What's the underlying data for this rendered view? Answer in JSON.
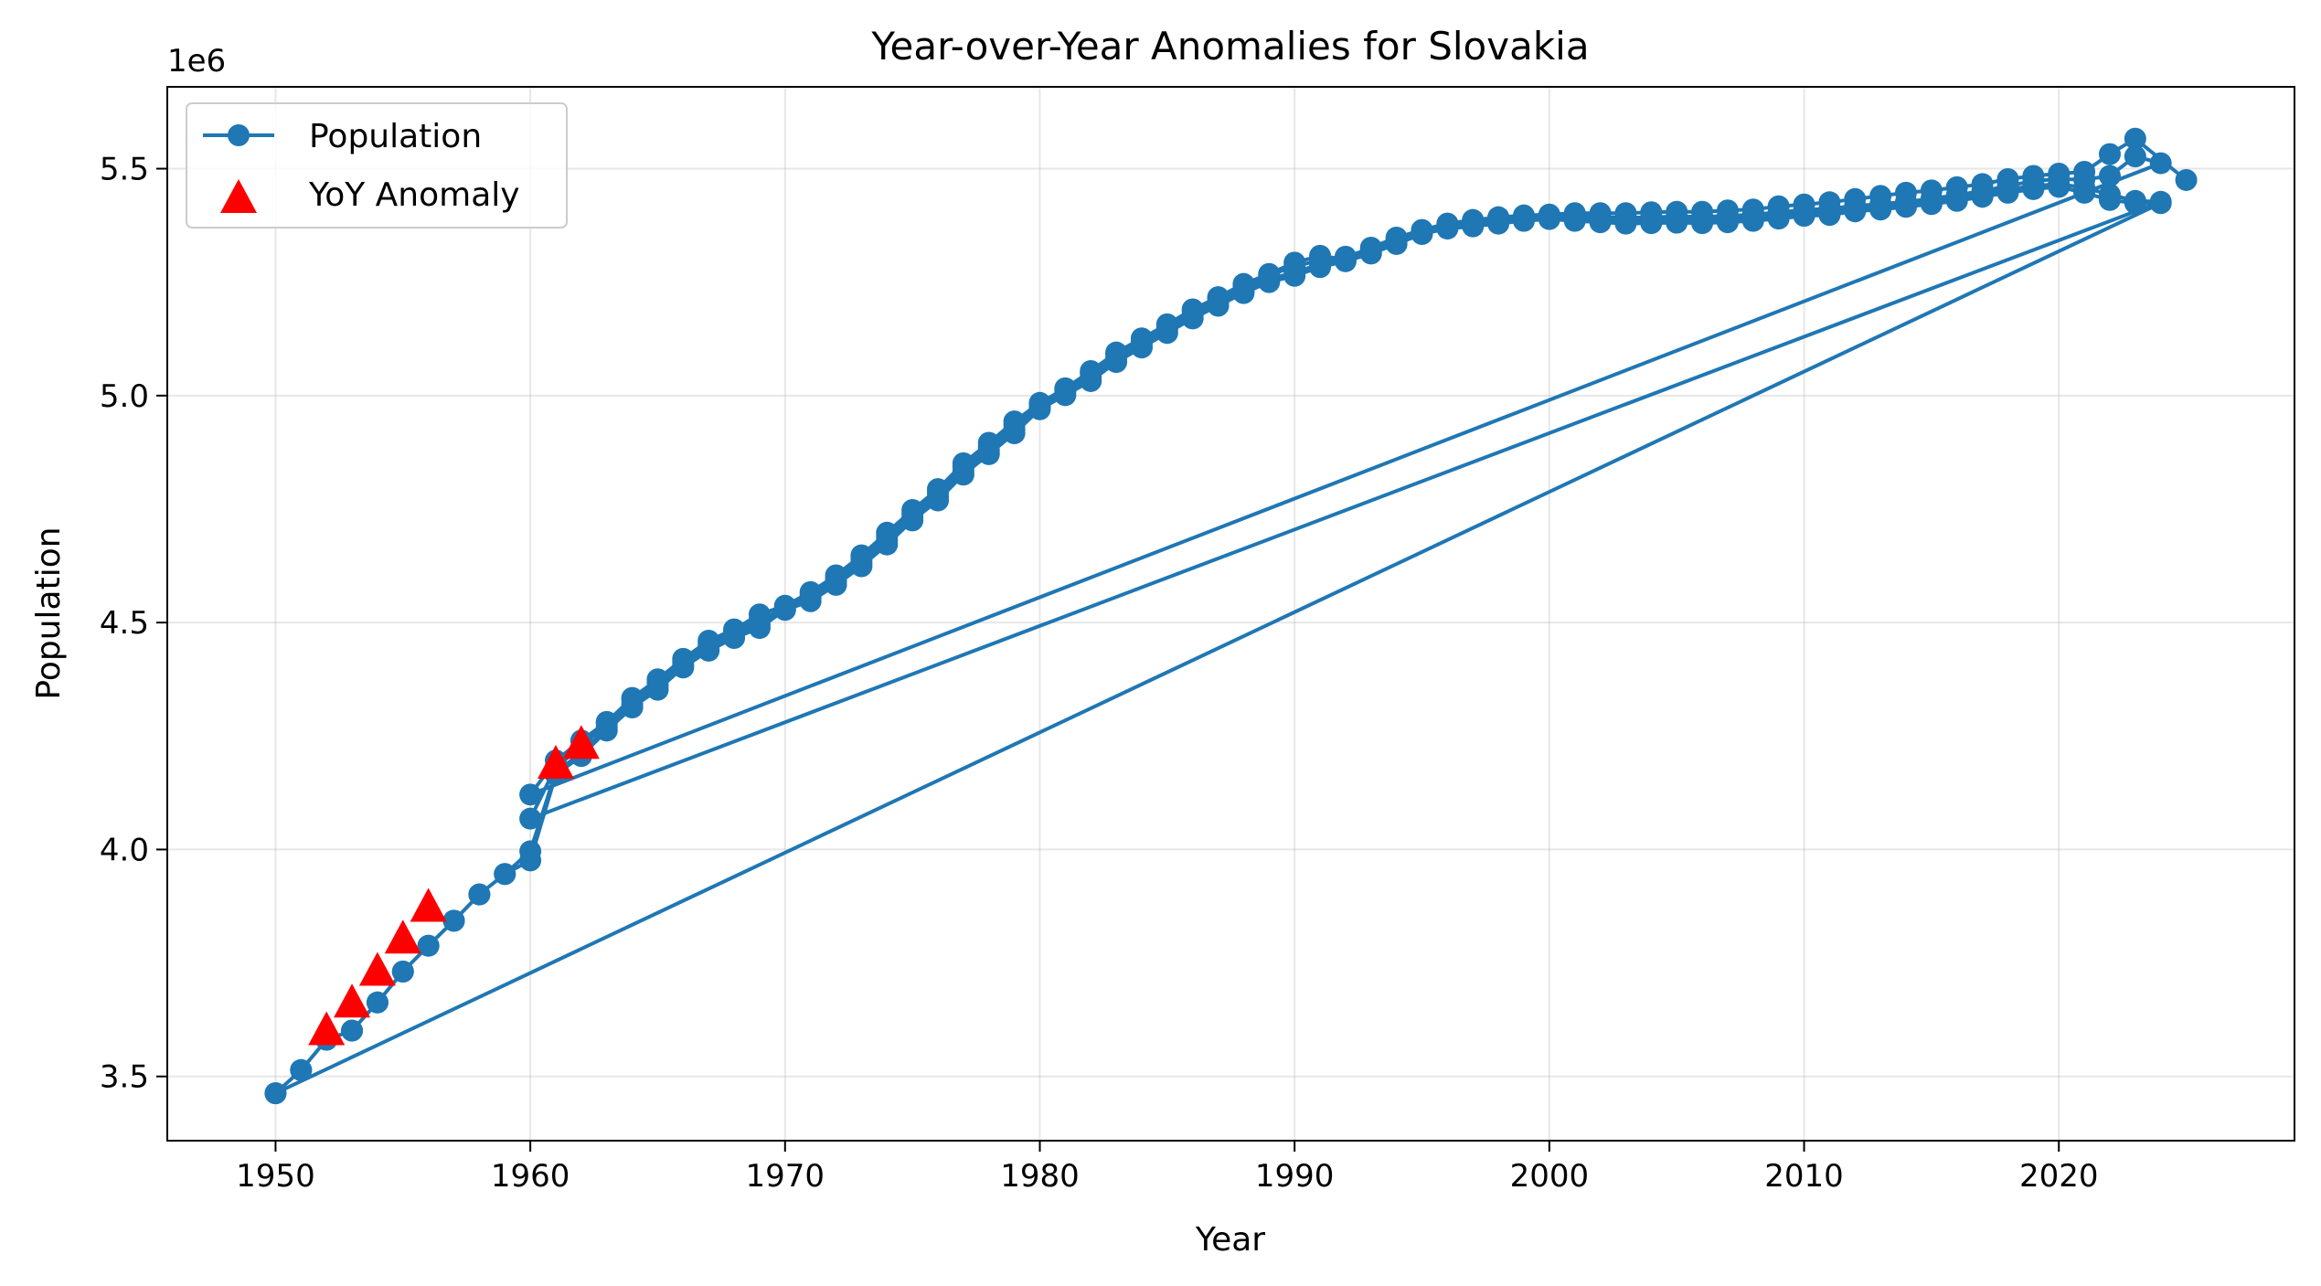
{
  "chart_data": {
    "type": "line",
    "title": "Year-over-Year Anomalies for Slovakia",
    "xlabel": "Year",
    "ylabel": "Population",
    "y_offset_label": "1e6",
    "xlim": [
      1945.75,
      2029.25
    ],
    "ylim": [
      3.3585,
      5.6803
    ],
    "x_ticks": [
      1950,
      1960,
      1970,
      1980,
      1990,
      2000,
      2010,
      2020
    ],
    "x_tick_labels": [
      "1950",
      "1960",
      "1970",
      "1980",
      "1990",
      "2000",
      "2010",
      "2020"
    ],
    "y_ticks": [
      3.5,
      4.0,
      4.5,
      5.0,
      5.5
    ],
    "y_tick_labels": [
      "3.5",
      "4.0",
      "4.5",
      "5.0",
      "5.5"
    ],
    "y_scale": 1000000,
    "grid": true,
    "legend_position": "upper-left",
    "legend": [
      "Population",
      "YoY Anomaly"
    ],
    "colors": {
      "line": "#1f77b4",
      "anomaly": "#ff0000"
    },
    "series": [
      {
        "name": "Population",
        "x": [
          1950,
          1951,
          1952,
          1953,
          1954,
          1955,
          1956,
          1957,
          1958,
          1959,
          1960,
          1961,
          1962,
          1963,
          1964,
          1965,
          1966,
          1967,
          1968,
          1969,
          1970,
          1971,
          1972,
          1973,
          1974,
          1975,
          1976,
          1977,
          1978,
          1979,
          1980,
          1981,
          1982,
          1983,
          1984,
          1985,
          1986,
          1987,
          1988,
          1989,
          1990,
          1991,
          1992,
          1993,
          1994,
          1995,
          1996,
          1997,
          1998,
          1999,
          2000,
          2001,
          2002,
          2003,
          2004,
          2005,
          2006,
          2007,
          2008,
          2009,
          2010,
          2011,
          2012,
          2013,
          2014,
          2015,
          2016,
          2017,
          2018,
          2019,
          2020,
          2021,
          2022,
          2023,
          2024,
          1950,
          1951,
          1952,
          1953,
          1954,
          1955,
          1956,
          1957,
          1958,
          1959,
          1960,
          1961,
          1962,
          1963,
          1964,
          1965,
          1966,
          1967,
          1968,
          1969,
          1970,
          1971,
          1972,
          1973,
          1974,
          1975,
          1976,
          1977,
          1978,
          1979,
          1980,
          1981,
          1982,
          1983,
          1984,
          1985,
          1986,
          1987,
          1988,
          1989,
          1990,
          1991,
          1992,
          1993,
          1994,
          1995,
          1996,
          1997,
          1998,
          1999,
          2000,
          2001,
          2002,
          2003,
          2004,
          2005,
          2006,
          2007,
          2008,
          2009,
          2010,
          2011,
          2012,
          2013,
          2014,
          2015,
          2016,
          2017,
          2018,
          2019,
          2020,
          2021,
          2022,
          2023,
          2024,
          1960,
          1961,
          1962,
          1963,
          1964,
          1965,
          1966,
          1967,
          1968,
          1969,
          1970,
          1971,
          1972,
          1973,
          1974,
          1975,
          1976,
          1977,
          1978,
          1979,
          1980,
          1981,
          1982,
          1983,
          1984,
          1985,
          1986,
          1987,
          1988,
          1989,
          1990,
          1991,
          1992,
          1993,
          1994,
          1995,
          1996,
          1997,
          1998,
          1999,
          2000,
          2001,
          2002,
          2003,
          2004,
          2005,
          2006,
          2007,
          2008,
          2009,
          2010,
          2011,
          2012,
          2013,
          2014,
          2015,
          2016,
          2017,
          2018,
          2019,
          2020,
          2021,
          2022,
          2023,
          2024,
          1960,
          1961,
          1962,
          1963,
          1964,
          1965,
          1966,
          1967,
          1968,
          1969,
          1970,
          1971,
          1972,
          1973,
          1974,
          1975,
          1976,
          1977,
          1978,
          1979,
          1980,
          1981,
          1982,
          1983,
          1984,
          1985,
          1986,
          1987,
          1988,
          1989,
          1990,
          1991,
          1992,
          1993,
          1994,
          1995,
          1996,
          1997,
          1998,
          1999,
          2000,
          2001,
          2002,
          2003,
          2004,
          2005,
          2006,
          2007,
          2008,
          2009,
          2010,
          2011,
          2012,
          2013,
          2014,
          2015,
          2016,
          2017,
          2018,
          2019,
          2020,
          2021,
          2022,
          2023,
          2025
        ],
        "y": [
          3.463,
          3.514,
          3.581,
          3.601,
          3.663,
          3.731,
          3.788,
          3.843,
          3.901,
          3.946,
          3.976,
          4.165,
          4.206,
          4.262,
          4.313,
          4.352,
          4.401,
          4.438,
          4.466,
          4.488,
          4.528,
          4.547,
          4.583,
          4.624,
          4.672,
          4.725,
          4.769,
          4.826,
          4.871,
          4.917,
          4.97,
          5.001,
          5.032,
          5.074,
          5.106,
          5.138,
          5.17,
          5.198,
          5.226,
          5.25,
          5.264,
          5.283,
          5.296,
          5.313,
          5.334,
          5.356,
          5.368,
          5.373,
          5.379,
          5.385,
          5.389,
          5.385,
          5.382,
          5.379,
          5.38,
          5.381,
          5.38,
          5.382,
          5.385,
          5.39,
          5.396,
          5.398,
          5.406,
          5.41,
          5.416,
          5.422,
          5.429,
          5.438,
          5.447,
          5.455,
          5.46,
          5.447,
          5.431,
          5.424,
          5.424,
          3.463,
          3.514,
          3.581,
          3.601,
          3.663,
          3.731,
          3.788,
          3.843,
          3.901,
          3.946,
          3.996,
          4.171,
          4.212,
          4.269,
          4.32,
          4.361,
          4.407,
          4.444,
          4.473,
          4.496,
          4.536,
          4.554,
          4.591,
          4.632,
          4.681,
          4.732,
          4.777,
          4.834,
          4.879,
          4.925,
          4.976,
          5.008,
          5.04,
          5.082,
          5.114,
          5.146,
          5.177,
          5.206,
          5.233,
          5.257,
          5.271,
          5.29,
          5.303,
          5.32,
          5.34,
          5.361,
          5.373,
          5.379,
          5.384,
          5.39,
          5.393,
          5.391,
          5.388,
          5.386,
          5.387,
          5.388,
          5.387,
          5.389,
          5.392,
          5.397,
          5.403,
          5.405,
          5.413,
          5.417,
          5.423,
          5.43,
          5.437,
          5.445,
          5.454,
          5.462,
          5.466,
          5.458,
          5.443,
          5.429,
          5.427,
          4.068,
          4.182,
          4.226,
          4.278,
          4.331,
          4.369,
          4.414,
          4.452,
          4.48,
          4.506,
          4.531,
          4.56,
          4.597,
          4.641,
          4.69,
          4.74,
          4.786,
          4.843,
          4.888,
          4.935,
          4.98,
          5.013,
          5.05,
          5.091,
          5.122,
          5.154,
          5.186,
          5.214,
          5.242,
          5.265,
          5.285,
          5.298,
          5.306,
          5.324,
          5.344,
          5.364,
          5.377,
          5.384,
          5.39,
          5.393,
          5.396,
          5.396,
          5.394,
          5.392,
          5.393,
          5.395,
          5.394,
          5.396,
          5.399,
          5.404,
          5.409,
          5.412,
          5.418,
          5.422,
          5.427,
          5.434,
          5.442,
          5.451,
          5.462,
          5.473,
          5.477,
          5.476,
          5.484,
          5.527,
          5.512,
          4.121,
          4.196,
          4.24,
          4.281,
          4.334,
          4.375,
          4.42,
          4.46,
          4.485,
          4.518,
          4.537,
          4.567,
          4.604,
          4.648,
          4.698,
          4.748,
          4.794,
          4.851,
          4.896,
          4.943,
          4.984,
          5.016,
          5.054,
          5.095,
          5.126,
          5.157,
          5.19,
          5.217,
          5.246,
          5.268,
          5.293,
          5.308,
          5.3,
          5.326,
          5.348,
          5.365,
          5.379,
          5.387,
          5.393,
          5.397,
          5.399,
          5.402,
          5.402,
          5.402,
          5.404,
          5.405,
          5.405,
          5.408,
          5.41,
          5.417,
          5.421,
          5.426,
          5.433,
          5.44,
          5.447,
          5.452,
          5.459,
          5.466,
          5.477,
          5.484,
          5.489,
          5.493,
          5.532,
          5.566,
          5.475
        ]
      },
      {
        "name": "YoY Anomaly",
        "x": [
          1952,
          1953,
          1954,
          1955,
          1956,
          1961,
          1962
        ],
        "y": [
          3.595,
          3.656,
          3.726,
          3.797,
          3.867,
          4.182,
          4.226
        ]
      }
    ]
  }
}
